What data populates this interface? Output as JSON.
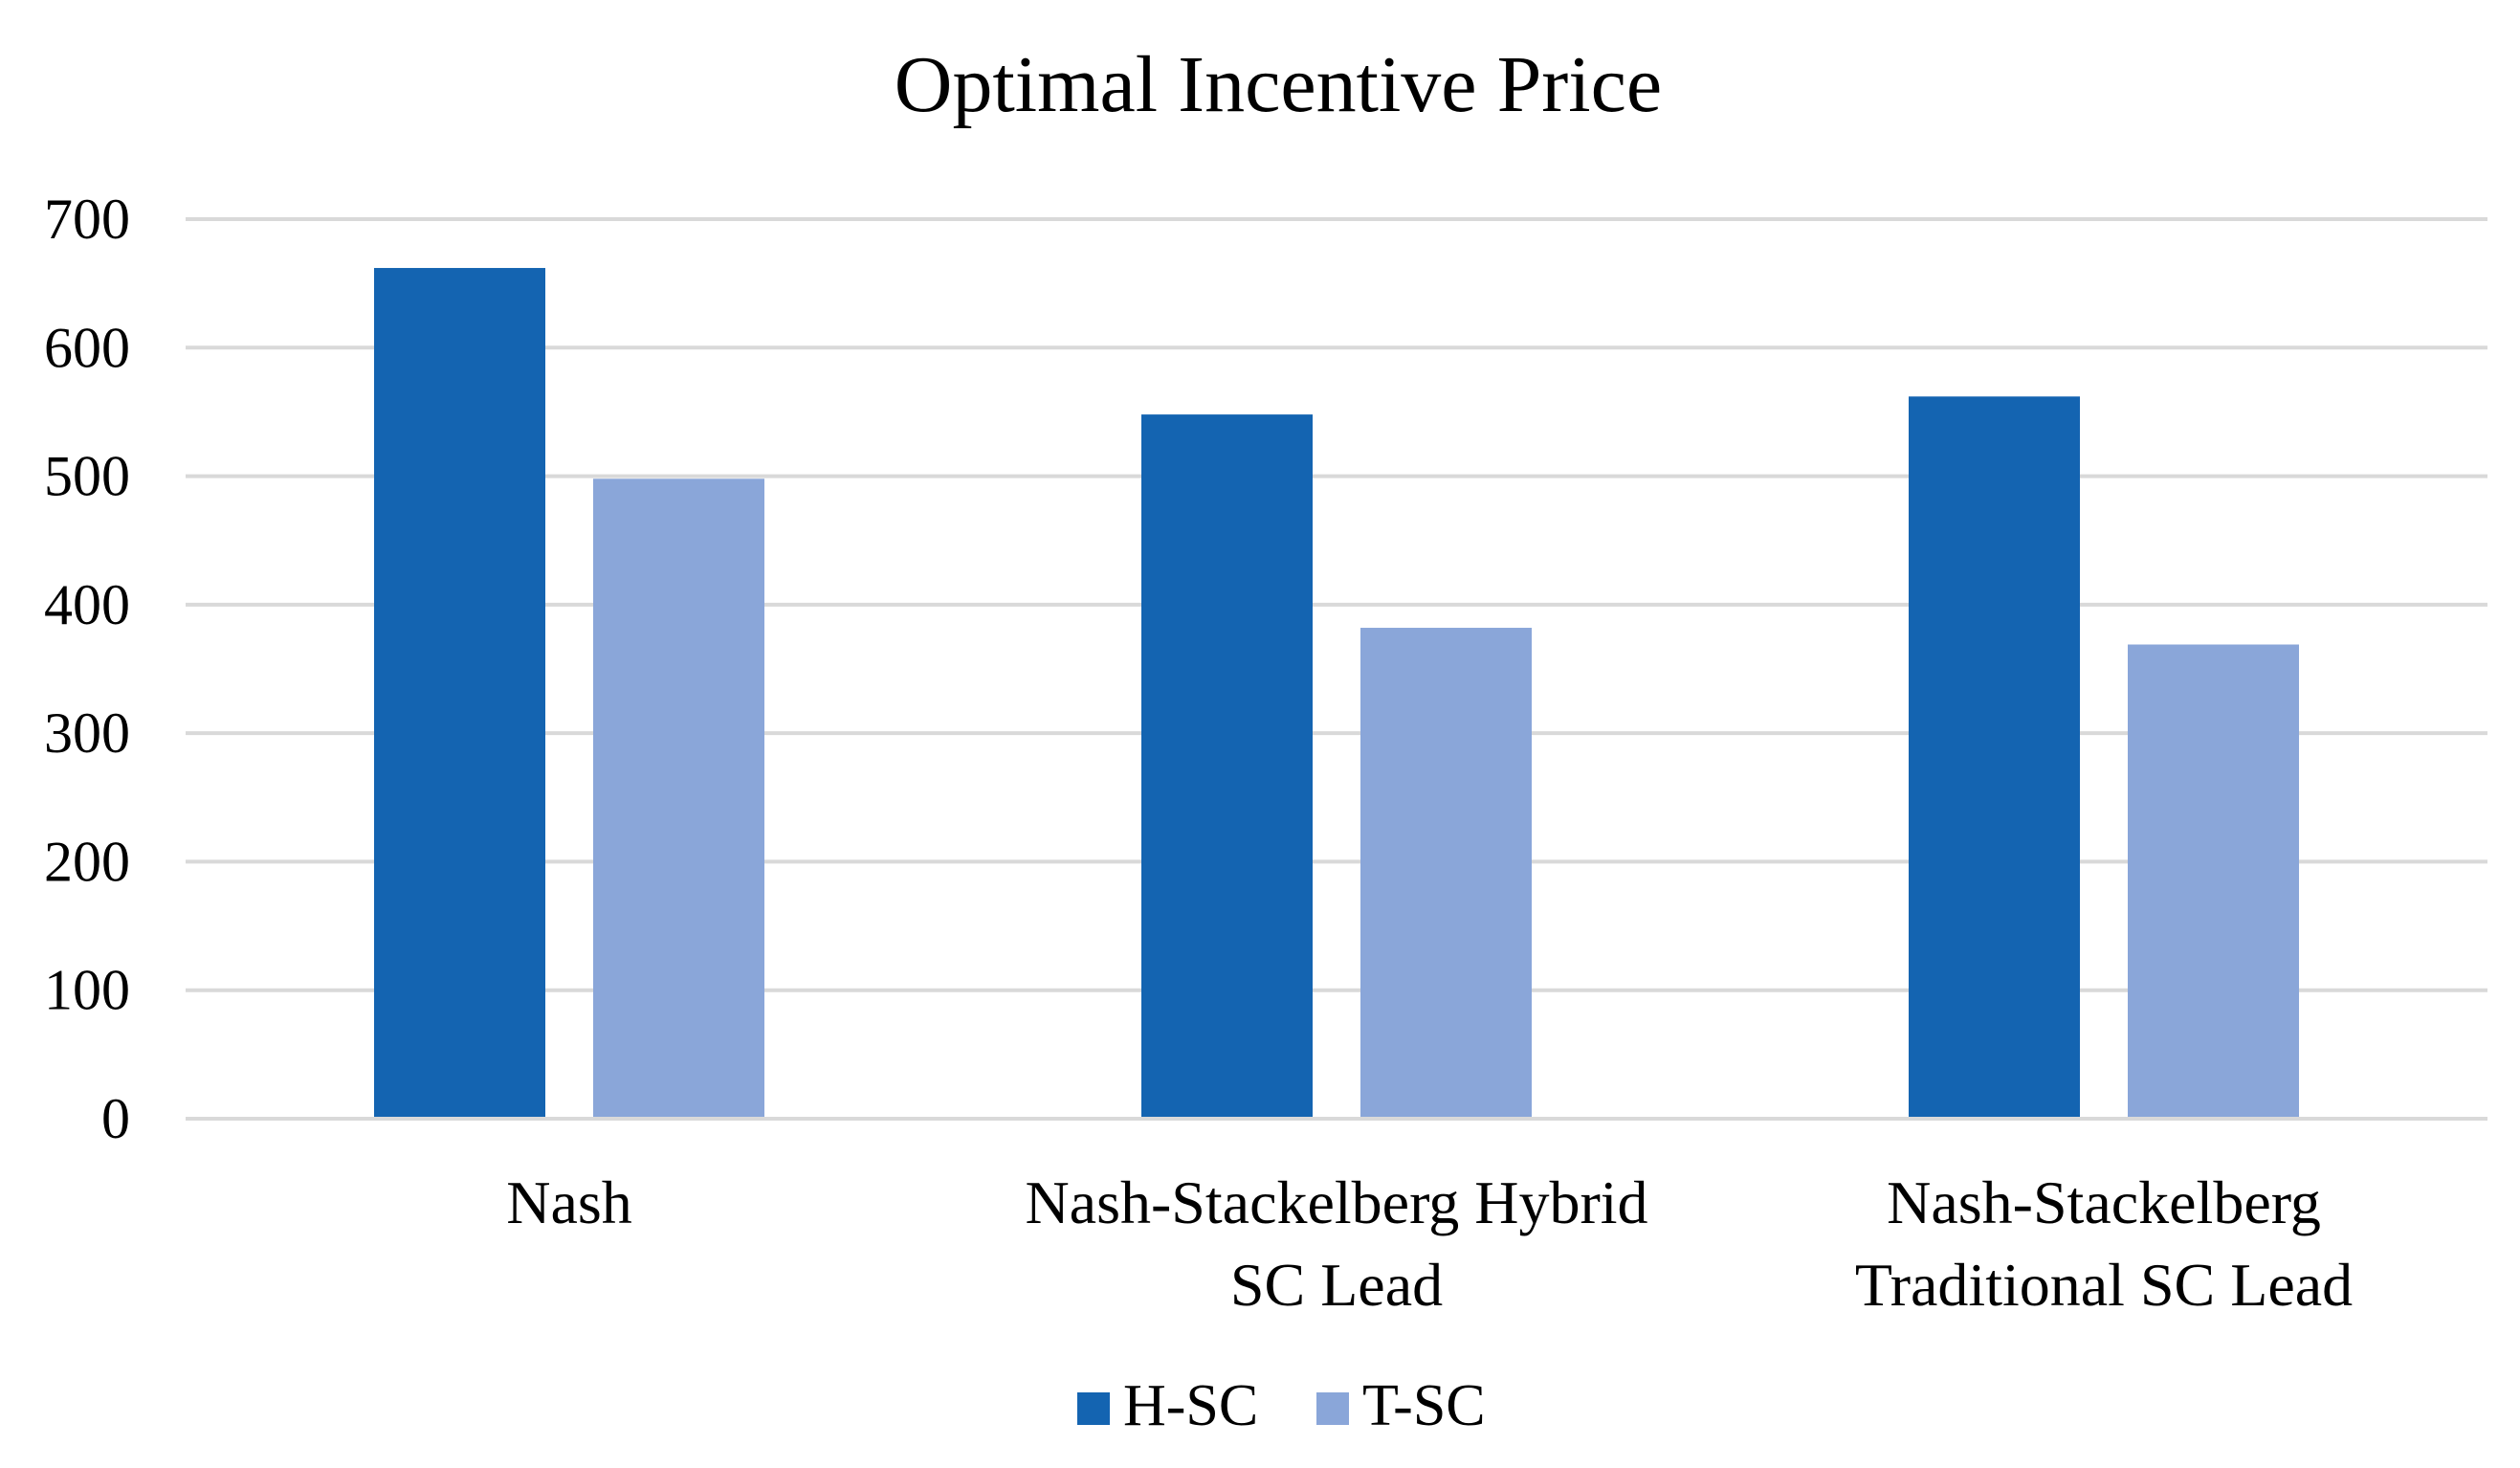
{
  "chart_data": {
    "type": "bar",
    "title": "Optimal Incentive Price",
    "xlabel": "",
    "ylabel": "",
    "ylim": [
      0,
      700
    ],
    "yticks": [
      0,
      100,
      200,
      300,
      400,
      500,
      600,
      700
    ],
    "ytick_labels": [
      "0",
      "100",
      "200",
      "300",
      "400",
      "500",
      "600",
      "700"
    ],
    "grid": true,
    "legend_position": "bottom",
    "categories": [
      [
        "Nash"
      ],
      [
        "Nash-Stackelberg Hybrid",
        "SC Lead"
      ],
      [
        "Nash-Stackelberg",
        "Traditional SC Lead"
      ]
    ],
    "series": [
      {
        "name": "H-SC",
        "color": "#1464b1",
        "values": [
          662,
          548,
          562
        ]
      },
      {
        "name": "T-SC",
        "color": "#8aa6d9",
        "values": [
          498,
          382,
          369
        ]
      }
    ]
  }
}
